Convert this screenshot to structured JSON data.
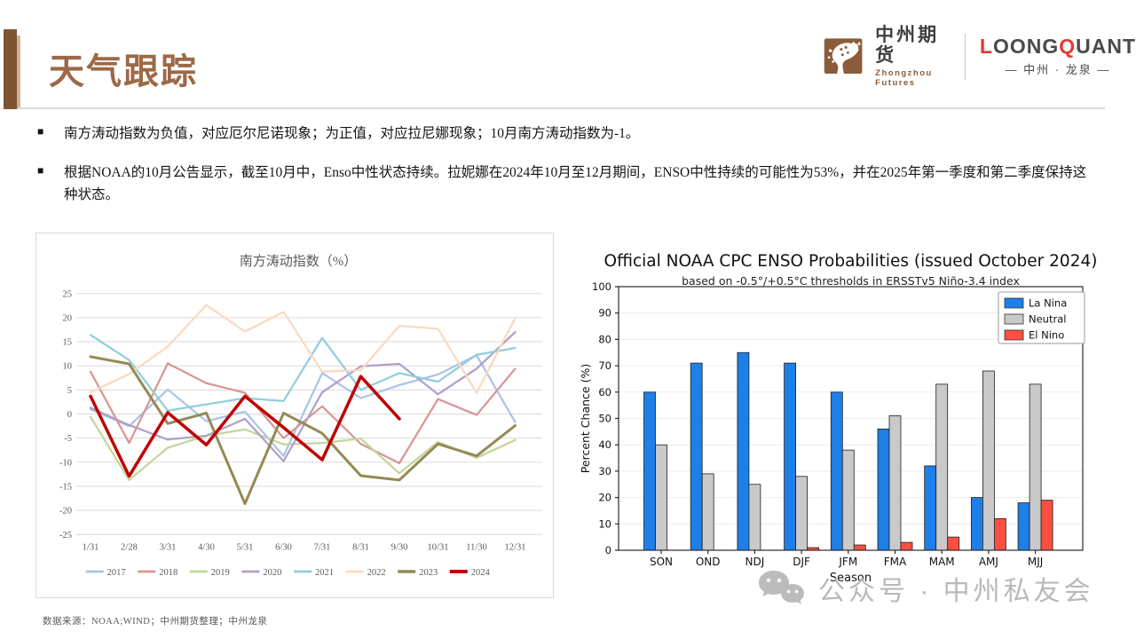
{
  "header": {
    "title": "天气跟踪",
    "logo1": {
      "name": "中州期货",
      "sub": "Zhongzhou Futures"
    },
    "logo2": {
      "seg1": "L",
      "seg2": "OONG",
      "seg3": "Q",
      "seg4": "UANT",
      "sub": "— 中州 · 龙泉 —"
    }
  },
  "bullets": [
    "南方涛动指数为负值，对应厄尔尼诺现象；为正值，对应拉尼娜现象；10月南方涛动指数为-1。",
    "根据NOAA的10月公告显示，截至10月中，Enso中性状态持续。拉妮娜在2024年10月至12月期间，ENSO中性持续的可能性为53%，并在2025年第一季度和第二季度保持这种状态。"
  ],
  "source_note": "数据来源：NOAA;WIND；中州期货整理；中州龙泉",
  "watermark": {
    "text": "公众号 · 中州私友会"
  },
  "chart_data": [
    {
      "type": "line",
      "title": "南方涛动指数（%）",
      "x_labels": [
        "1/31",
        "2/28",
        "3/31",
        "4/30",
        "5/31",
        "6/30",
        "7/31",
        "8/31",
        "9/30",
        "10/31",
        "11/30",
        "12/31"
      ],
      "ylim": [
        -25,
        25
      ],
      "ytick_step": 5,
      "grid": true,
      "legend_position": "bottom",
      "series": [
        {
          "name": "2017",
          "color": "#A9C4E9",
          "width": 2.25,
          "values": [
            1.0,
            -2.5,
            5.1,
            -1.5,
            0.5,
            -8.7,
            8.5,
            3.3,
            6.0,
            8.2,
            12.2,
            -1.7
          ]
        },
        {
          "name": "2018",
          "color": "#D99694",
          "width": 2.25,
          "values": [
            8.8,
            -6.0,
            10.5,
            6.4,
            4.4,
            -5.0,
            1.6,
            -6.2,
            -10.2,
            3.1,
            -0.2,
            9.4
          ]
        },
        {
          "name": "2019",
          "color": "#C3D69B",
          "width": 2.25,
          "values": [
            -0.6,
            -13.7,
            -7.0,
            -4.5,
            -3.2,
            -6.3,
            -6.0,
            -5.1,
            -12.3,
            -5.8,
            -9.1,
            -5.4
          ]
        },
        {
          "name": "2020",
          "color": "#B1A0C7",
          "width": 2.25,
          "values": [
            1.3,
            -2.3,
            -5.3,
            -4.5,
            -1.0,
            -9.8,
            4.5,
            9.9,
            10.4,
            4.1,
            9.4,
            17.0
          ]
        },
        {
          "name": "2021",
          "color": "#92CDDC",
          "width": 2.25,
          "values": [
            16.4,
            11.2,
            0.7,
            2.0,
            3.3,
            2.7,
            15.8,
            5.0,
            8.5,
            6.7,
            12.3,
            13.7
          ]
        },
        {
          "name": "2022",
          "color": "#FBD9C0",
          "width": 2.25,
          "values": [
            4.5,
            8.3,
            14.0,
            22.6,
            17.1,
            21.2,
            8.8,
            9.1,
            18.3,
            17.7,
            4.4,
            19.9
          ]
        },
        {
          "name": "2023",
          "color": "#948A54",
          "width": 3.0,
          "values": [
            11.9,
            10.4,
            -2.0,
            0.2,
            -18.6,
            0.2,
            -4.0,
            -12.8,
            -13.7,
            -6.2,
            -8.7,
            -2.4
          ]
        },
        {
          "name": "2024",
          "color": "#C00000",
          "width": 3.5,
          "values": [
            3.7,
            -12.9,
            0.3,
            -6.4,
            3.7,
            -2.8,
            -9.5,
            7.8,
            -1.0,
            null,
            null,
            null
          ]
        }
      ]
    },
    {
      "type": "bar",
      "title": "Official NOAA CPC ENSO Probabilities (issued October 2024)",
      "subtitle": "based on -0.5°/+0.5°C thresholds in ERSSTv5 Niño-3.4 index",
      "categories": [
        "SON",
        "OND",
        "NDJ",
        "DJF",
        "JFM",
        "FMA",
        "MAM",
        "AMJ",
        "MJJ"
      ],
      "series": [
        {
          "name": "La Nina",
          "color": "#1E7FE8",
          "values": [
            60,
            71,
            75,
            71,
            60,
            46,
            32,
            20,
            18
          ]
        },
        {
          "name": "Neutral",
          "color": "#C9C9C9",
          "values": [
            40,
            29,
            25,
            28,
            38,
            51,
            63,
            68,
            63
          ]
        },
        {
          "name": "El Nino",
          "color": "#FB4F42",
          "values": [
            0,
            0,
            0,
            1,
            2,
            3,
            5,
            12,
            19
          ]
        }
      ],
      "xlabel": "Season",
      "ylabel": "Percent Chance (%)",
      "ylim": [
        0,
        100
      ],
      "ytick_step": 10,
      "grid": true,
      "legend_position": "upper right"
    }
  ]
}
